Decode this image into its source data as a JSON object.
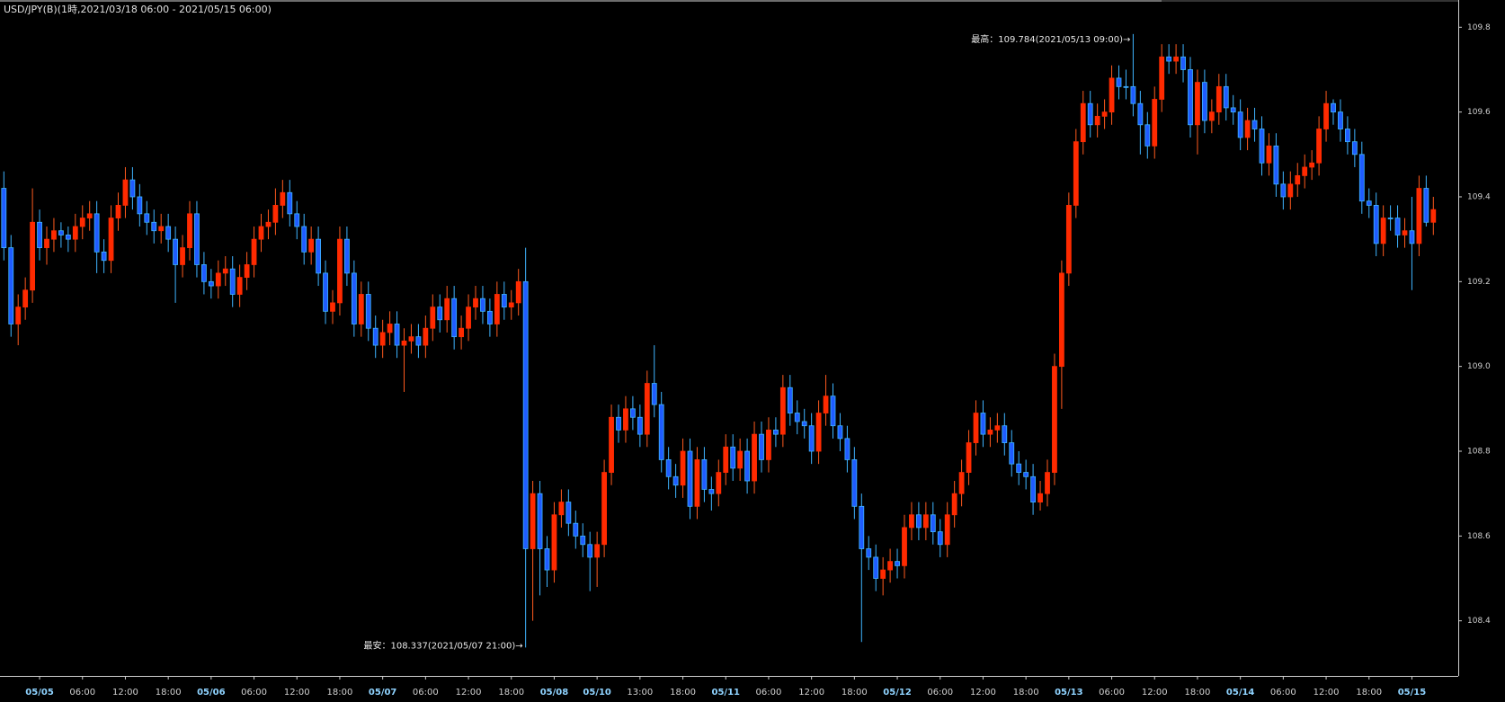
{
  "chart_data": {
    "type": "candlestick",
    "title": "USD/JPY(B)(1時,2021/03/18 06:00 - 2021/05/15 06:00)",
    "annotations": [
      {
        "text": "最高：109.784(2021/05/13 09:00)→"
      },
      {
        "text": "最安：108.337(2021/05/07 21:00)→"
      }
    ],
    "up_color": "#ff2a00",
    "down_color": "#1f5cff",
    "up_wick_color": "#ff5a1e",
    "down_wick_color": "#3fb4ff",
    "ylim": [
      108.27,
      109.86
    ],
    "yticks": [
      108.4,
      108.6,
      108.8,
      {
        "value": 109,
        "label": "109.0"
      },
      109.2,
      109.4,
      109.6,
      109.8
    ],
    "categories": [
      null,
      null,
      null,
      null,
      null,
      "05/05",
      null,
      null,
      null,
      null,
      null,
      "06:00",
      null,
      null,
      null,
      null,
      null,
      "12:00",
      null,
      null,
      null,
      null,
      null,
      "18:00",
      null,
      null,
      null,
      null,
      null,
      "05/06",
      null,
      null,
      null,
      null,
      null,
      "06:00",
      null,
      null,
      null,
      null,
      null,
      "12:00",
      null,
      null,
      null,
      null,
      null,
      "18:00",
      null,
      null,
      null,
      null,
      null,
      "05/07",
      null,
      null,
      null,
      null,
      null,
      "06:00",
      null,
      null,
      null,
      null,
      null,
      "12:00",
      null,
      null,
      null,
      null,
      null,
      "18:00",
      null,
      null,
      null,
      null,
      null,
      "05/08",
      null,
      null,
      null,
      null,
      null,
      "05/10",
      null,
      null,
      null,
      null,
      null,
      "13:00",
      null,
      null,
      null,
      null,
      null,
      "18:00",
      null,
      null,
      null,
      null,
      null,
      "05/11",
      null,
      null,
      null,
      null,
      null,
      "06:00",
      null,
      null,
      null,
      null,
      null,
      "12:00",
      null,
      null,
      null,
      null,
      null,
      "18:00",
      null,
      null,
      null,
      null,
      null,
      "05/12",
      null,
      null,
      null,
      null,
      null,
      "06:00",
      null,
      null,
      null,
      null,
      null,
      "12:00",
      null,
      null,
      null,
      null,
      null,
      "18:00",
      null,
      null,
      null,
      null,
      null,
      "05/13",
      null,
      null,
      null,
      null,
      null,
      "06:00",
      null,
      null,
      null,
      null,
      null,
      "12:00",
      null,
      null,
      null,
      null,
      null,
      "18:00",
      null,
      null,
      null,
      null,
      null,
      "05/14",
      null,
      null,
      null,
      null,
      null,
      "06:00",
      null,
      null,
      null,
      null,
      null,
      "12:00",
      null,
      null,
      null,
      null,
      null,
      "18:00",
      null,
      null,
      null,
      null,
      null,
      "05/15",
      null,
      null,
      null
    ],
    "open": [
      109.42,
      109.28,
      109.1,
      109.14,
      109.18,
      109.34,
      109.28,
      109.3,
      109.32,
      109.31,
      109.3,
      109.33,
      109.35,
      109.36,
      109.27,
      109.25,
      109.35,
      109.38,
      109.44,
      109.4,
      109.36,
      109.34,
      109.32,
      109.33,
      109.3,
      109.24,
      109.28,
      109.36,
      109.24,
      109.2,
      109.19,
      109.22,
      109.23,
      109.17,
      109.21,
      109.24,
      109.3,
      109.33,
      109.34,
      109.38,
      109.41,
      109.36,
      109.33,
      109.27,
      109.3,
      109.22,
      109.13,
      109.15,
      109.3,
      109.22,
      109.1,
      109.17,
      109.09,
      109.05,
      109.08,
      109.1,
      109.05,
      109.06,
      109.07,
      109.05,
      109.09,
      109.14,
      109.11,
      109.16,
      109.07,
      109.09,
      109.14,
      109.16,
      109.13,
      109.1,
      109.17,
      109.14,
      109.15,
      109.2,
      108.57,
      108.7,
      108.57,
      108.52,
      108.65,
      108.68,
      108.63,
      108.6,
      108.58,
      108.55,
      108.58,
      108.75,
      108.88,
      108.85,
      108.9,
      108.88,
      108.84,
      108.96,
      108.91,
      108.78,
      108.74,
      108.72,
      108.8,
      108.67,
      108.78,
      108.71,
      108.7,
      108.75,
      108.81,
      108.76,
      108.8,
      108.73,
      108.84,
      108.78,
      108.85,
      108.84,
      108.95,
      108.89,
      108.87,
      108.86,
      108.8,
      108.89,
      108.93,
      108.86,
      108.83,
      108.78,
      108.67,
      108.57,
      108.55,
      108.5,
      108.52,
      108.54,
      108.53,
      108.62,
      108.65,
      108.62,
      108.65,
      108.61,
      108.58,
      108.65,
      108.7,
      108.75,
      108.82,
      108.89,
      108.84,
      108.85,
      108.86,
      108.82,
      108.77,
      108.75,
      108.74,
      108.68,
      108.7,
      108.75,
      109.0,
      109.22,
      109.38,
      109.53,
      109.62,
      109.57,
      109.59,
      109.6,
      109.68,
      109.66,
      109.66,
      109.62,
      109.57,
      109.52,
      109.63,
      109.73,
      109.72,
      109.73,
      109.7,
      109.57,
      109.67,
      109.58,
      109.6,
      109.66,
      109.61,
      109.6,
      109.54,
      109.58,
      109.56,
      109.48,
      109.52,
      109.43,
      109.4,
      109.43,
      109.45,
      109.47,
      109.48,
      109.56,
      109.62,
      109.6,
      109.56,
      109.53,
      109.5,
      109.39,
      109.38,
      109.29,
      109.35,
      109.35,
      109.31,
      109.32,
      109.29,
      109.42,
      109.34
    ],
    "high": [
      109.46,
      109.31,
      109.17,
      109.21,
      109.42,
      109.37,
      109.33,
      109.35,
      109.34,
      109.33,
      109.36,
      109.38,
      109.39,
      109.39,
      109.3,
      109.38,
      109.41,
      109.47,
      109.47,
      109.43,
      109.39,
      109.37,
      109.36,
      109.36,
      109.33,
      109.31,
      109.39,
      109.39,
      109.27,
      109.23,
      109.25,
      109.26,
      109.26,
      109.24,
      109.27,
      109.33,
      109.36,
      109.37,
      109.42,
      109.44,
      109.44,
      109.39,
      109.36,
      109.33,
      109.33,
      109.25,
      109.18,
      109.33,
      109.33,
      109.25,
      109.2,
      109.2,
      109.12,
      109.11,
      109.13,
      109.13,
      109.09,
      109.1,
      109.1,
      109.12,
      109.17,
      109.17,
      109.19,
      109.19,
      109.12,
      109.17,
      109.19,
      109.19,
      109.16,
      109.2,
      109.2,
      109.18,
      109.23,
      109.28,
      108.73,
      108.73,
      108.6,
      108.68,
      108.71,
      108.71,
      108.66,
      108.63,
      108.61,
      108.61,
      108.78,
      108.91,
      108.91,
      108.93,
      108.93,
      108.91,
      108.99,
      109.05,
      108.94,
      108.81,
      108.77,
      108.83,
      108.83,
      108.81,
      108.81,
      108.74,
      108.78,
      108.84,
      108.84,
      108.83,
      108.83,
      108.87,
      108.87,
      108.88,
      108.88,
      108.98,
      108.98,
      108.92,
      108.9,
      108.89,
      108.92,
      108.98,
      108.96,
      108.89,
      108.86,
      108.81,
      108.7,
      108.6,
      108.58,
      108.55,
      108.57,
      108.57,
      108.65,
      108.68,
      108.68,
      108.68,
      108.68,
      108.64,
      108.68,
      108.73,
      108.78,
      108.85,
      108.92,
      108.92,
      108.88,
      108.89,
      108.89,
      108.85,
      108.8,
      108.78,
      108.77,
      108.73,
      108.78,
      109.03,
      109.25,
      109.41,
      109.56,
      109.65,
      109.65,
      109.62,
      109.63,
      109.71,
      109.71,
      109.7,
      109.784,
      109.65,
      109.6,
      109.66,
      109.76,
      109.76,
      109.76,
      109.76,
      109.73,
      109.7,
      109.7,
      109.63,
      109.69,
      109.69,
      109.64,
      109.63,
      109.61,
      109.61,
      109.59,
      109.55,
      109.55,
      109.46,
      109.46,
      109.48,
      109.5,
      109.51,
      109.59,
      109.65,
      109.63,
      109.63,
      109.59,
      109.56,
      109.53,
      109.42,
      109.41,
      109.38,
      109.38,
      109.38,
      109.35,
      109.4,
      109.45,
      109.45,
      109.4
    ],
    "low": [
      109.25,
      109.07,
      109.05,
      109.11,
      109.15,
      109.25,
      109.24,
      109.27,
      109.28,
      109.27,
      109.27,
      109.3,
      109.32,
      109.22,
      109.22,
      109.22,
      109.32,
      109.35,
      109.37,
      109.33,
      109.31,
      109.29,
      109.29,
      109.27,
      109.15,
      109.21,
      109.25,
      109.21,
      109.17,
      109.16,
      109.16,
      109.19,
      109.14,
      109.14,
      109.18,
      109.21,
      109.27,
      109.3,
      109.31,
      109.35,
      109.33,
      109.3,
      109.24,
      109.24,
      109.19,
      109.1,
      109.1,
      109.12,
      109.19,
      109.07,
      109.07,
      109.06,
      109.02,
      109.02,
      109.05,
      109.02,
      108.94,
      109.03,
      109.02,
      109.02,
      109.06,
      109.08,
      109.08,
      109.04,
      109.04,
      109.06,
      109.11,
      109.1,
      109.07,
      109.07,
      109.11,
      109.11,
      109.12,
      108.337,
      108.4,
      108.46,
      108.48,
      108.49,
      108.62,
      108.6,
      108.57,
      108.55,
      108.47,
      108.48,
      108.55,
      108.72,
      108.82,
      108.82,
      108.85,
      108.81,
      108.81,
      108.88,
      108.75,
      108.71,
      108.69,
      108.69,
      108.64,
      108.64,
      108.68,
      108.66,
      108.67,
      108.72,
      108.73,
      108.73,
      108.7,
      108.7,
      108.75,
      108.75,
      108.81,
      108.81,
      108.86,
      108.84,
      108.83,
      108.77,
      108.77,
      108.86,
      108.83,
      108.8,
      108.75,
      108.64,
      108.35,
      108.52,
      108.47,
      108.46,
      108.49,
      108.5,
      108.5,
      108.59,
      108.59,
      108.59,
      108.58,
      108.55,
      108.55,
      108.62,
      108.67,
      108.72,
      108.79,
      108.81,
      108.81,
      108.82,
      108.79,
      108.74,
      108.72,
      108.71,
      108.65,
      108.66,
      108.67,
      108.72,
      108.9,
      109.19,
      109.35,
      109.5,
      109.54,
      109.54,
      109.56,
      109.57,
      109.63,
      109.63,
      109.59,
      109.5,
      109.49,
      109.49,
      109.6,
      109.69,
      109.69,
      109.67,
      109.54,
      109.5,
      109.55,
      109.55,
      109.57,
      109.58,
      109.57,
      109.51,
      109.51,
      109.53,
      109.45,
      109.45,
      109.4,
      109.37,
      109.37,
      109.4,
      109.42,
      109.44,
      109.45,
      109.53,
      109.57,
      109.53,
      109.5,
      109.47,
      109.36,
      109.35,
      109.26,
      109.26,
      109.32,
      109.28,
      109.28,
      109.18,
      109.26,
      109.33,
      109.31
    ],
    "close": [
      109.28,
      109.1,
      109.14,
      109.18,
      109.34,
      109.28,
      109.3,
      109.32,
      109.31,
      109.3,
      109.33,
      109.35,
      109.36,
      109.27,
      109.25,
      109.35,
      109.38,
      109.44,
      109.4,
      109.36,
      109.34,
      109.32,
      109.33,
      109.3,
      109.24,
      109.28,
      109.36,
      109.24,
      109.2,
      109.19,
      109.22,
      109.23,
      109.17,
      109.21,
      109.24,
      109.3,
      109.33,
      109.34,
      109.38,
      109.41,
      109.36,
      109.33,
      109.27,
      109.3,
      109.22,
      109.13,
      109.15,
      109.3,
      109.22,
      109.1,
      109.17,
      109.09,
      109.05,
      109.08,
      109.1,
      109.05,
      109.06,
      109.07,
      109.05,
      109.09,
      109.14,
      109.11,
      109.16,
      109.07,
      109.09,
      109.14,
      109.16,
      109.13,
      109.1,
      109.17,
      109.14,
      109.15,
      109.2,
      108.57,
      108.7,
      108.57,
      108.52,
      108.65,
      108.68,
      108.63,
      108.6,
      108.58,
      108.55,
      108.58,
      108.75,
      108.88,
      108.85,
      108.9,
      108.88,
      108.84,
      108.96,
      108.91,
      108.78,
      108.74,
      108.72,
      108.8,
      108.67,
      108.78,
      108.71,
      108.7,
      108.75,
      108.81,
      108.76,
      108.8,
      108.73,
      108.84,
      108.78,
      108.85,
      108.84,
      108.95,
      108.89,
      108.87,
      108.86,
      108.8,
      108.89,
      108.93,
      108.86,
      108.83,
      108.78,
      108.67,
      108.57,
      108.55,
      108.5,
      108.52,
      108.54,
      108.53,
      108.62,
      108.65,
      108.62,
      108.65,
      108.61,
      108.58,
      108.65,
      108.7,
      108.75,
      108.82,
      108.89,
      108.84,
      108.85,
      108.86,
      108.82,
      108.77,
      108.75,
      108.74,
      108.68,
      108.7,
      108.75,
      109.0,
      109.22,
      109.38,
      109.53,
      109.62,
      109.57,
      109.59,
      109.6,
      109.68,
      109.66,
      109.66,
      109.62,
      109.57,
      109.52,
      109.63,
      109.73,
      109.72,
      109.73,
      109.7,
      109.57,
      109.67,
      109.58,
      109.6,
      109.66,
      109.61,
      109.6,
      109.54,
      109.58,
      109.56,
      109.48,
      109.52,
      109.43,
      109.4,
      109.43,
      109.45,
      109.47,
      109.48,
      109.56,
      109.62,
      109.6,
      109.56,
      109.53,
      109.5,
      109.39,
      109.38,
      109.29,
      109.35,
      109.35,
      109.31,
      109.32,
      109.29,
      109.42,
      109.34,
      109.37
    ]
  }
}
